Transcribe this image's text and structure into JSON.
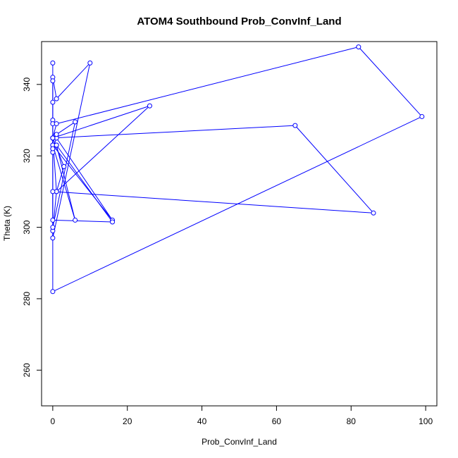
{
  "chart_data": {
    "type": "line",
    "title": "ATOM4 Southbound Prob_ConvInf_Land",
    "xlabel": "Prob_ConvInf_Land",
    "ylabel": "Theta (K)",
    "xlim": [
      -3,
      103
    ],
    "ylim": [
      250,
      352
    ],
    "xticks": [
      0,
      20,
      40,
      60,
      80,
      100
    ],
    "yticks": [
      260,
      280,
      300,
      320,
      340
    ],
    "grid": false,
    "series_color": "#0000ff",
    "series": [
      {
        "x": [
          0,
          0,
          1,
          10,
          0,
          0,
          0,
          0,
          0,
          0,
          0,
          1,
          82,
          99,
          0,
          0,
          26,
          1,
          0,
          0,
          16,
          1,
          0,
          0,
          6,
          1,
          0,
          0,
          3,
          1,
          0,
          0,
          6,
          1,
          0,
          0,
          65,
          86,
          0,
          0,
          16,
          1,
          0,
          0
        ],
        "y": [
          346,
          342,
          336,
          346,
          297,
          341,
          335,
          330,
          329,
          325,
          325,
          329,
          350.5,
          331,
          282,
          325,
          334,
          310,
          325,
          323,
          302,
          325,
          322,
          323,
          302,
          323,
          321,
          325,
          317,
          310,
          299,
          300,
          329.5,
          326,
          325,
          325,
          328.5,
          304,
          310,
          302,
          301.5,
          323,
          322,
          325
        ]
      }
    ]
  }
}
